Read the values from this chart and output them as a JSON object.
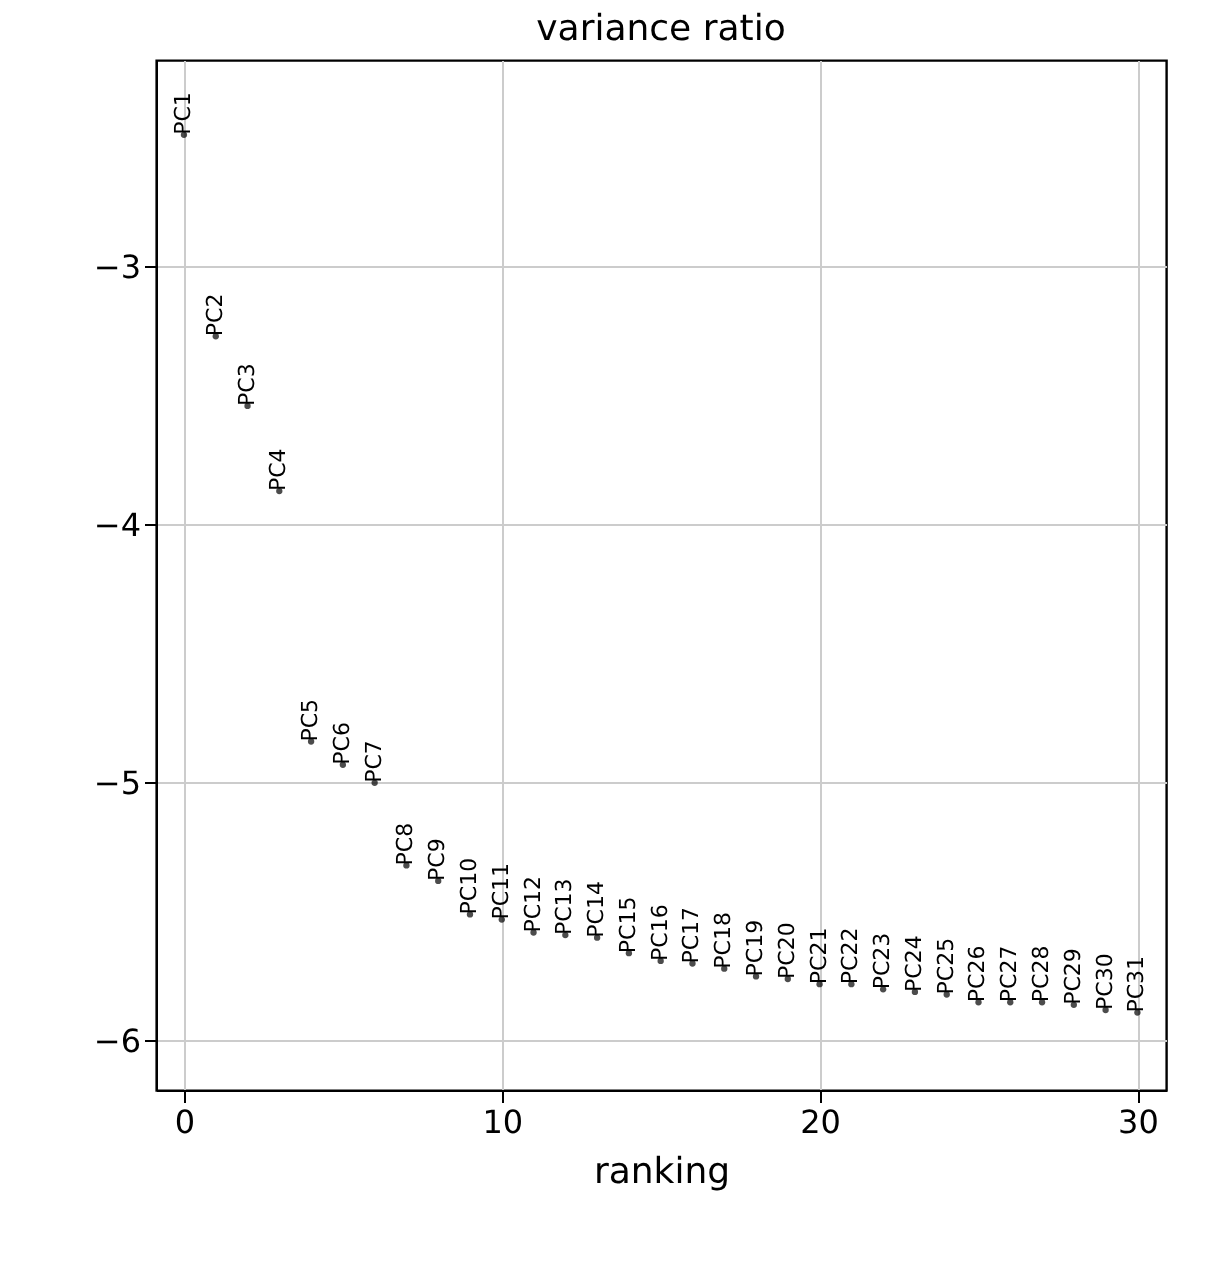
{
  "chart_data": {
    "type": "scatter",
    "title": "variance ratio",
    "xlabel": "ranking",
    "x": [
      0,
      1,
      2,
      3,
      4,
      5,
      6,
      7,
      8,
      9,
      10,
      11,
      12,
      13,
      14,
      15,
      16,
      17,
      18,
      19,
      20,
      21,
      22,
      23,
      24,
      25,
      26,
      27,
      28,
      29,
      30
    ],
    "values": [
      -2.49,
      -3.27,
      -3.54,
      -3.87,
      -4.84,
      -4.93,
      -5.0,
      -5.32,
      -5.38,
      -5.51,
      -5.53,
      -5.58,
      -5.59,
      -5.6,
      -5.66,
      -5.69,
      -5.7,
      -5.72,
      -5.75,
      -5.76,
      -5.78,
      -5.78,
      -5.8,
      -5.81,
      -5.82,
      -5.85,
      -5.85,
      -5.85,
      -5.86,
      -5.88,
      -5.89
    ],
    "value_labels": [
      "PC1",
      "PC2",
      "PC3",
      "PC4",
      "PC5",
      "PC6",
      "PC7",
      "PC8",
      "PC9",
      "PC10",
      "PC11",
      "PC12",
      "PC13",
      "PC14",
      "PC15",
      "PC16",
      "PC17",
      "PC18",
      "PC19",
      "PC20",
      "PC21",
      "PC22",
      "PC23",
      "PC24",
      "PC25",
      "PC26",
      "PC27",
      "PC28",
      "PC29",
      "PC30",
      "PC31"
    ],
    "xlim": [
      -0.88,
      30.9
    ],
    "xticks": [
      0,
      10,
      20,
      30
    ],
    "ylim": [
      -6.19,
      -2.2
    ],
    "yticks": [
      -6,
      -5,
      -4,
      -3
    ],
    "grid": true,
    "marker": "none"
  }
}
